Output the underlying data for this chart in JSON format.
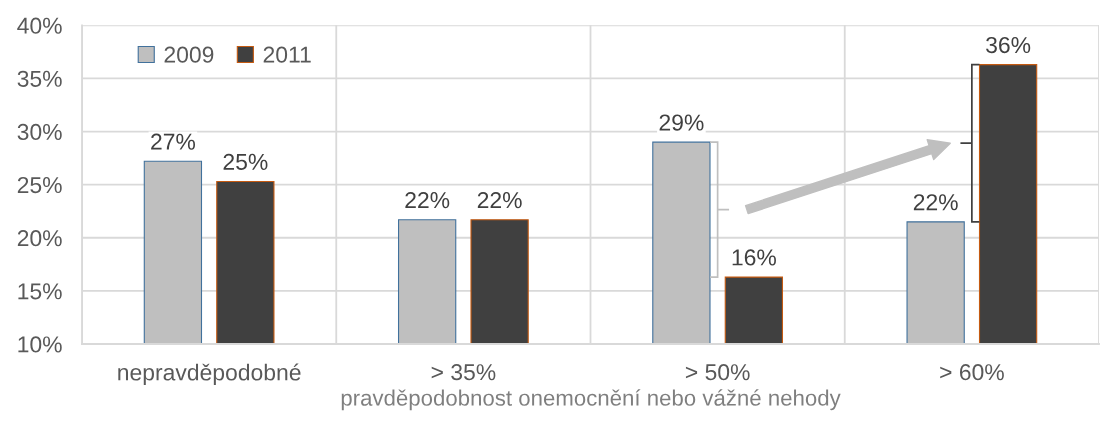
{
  "chart_data": {
    "type": "bar",
    "xlabel": "pravděpodobnost onemocnění nebo vážné nehody",
    "categories": [
      "nepravděpodobné",
      "> 35%",
      "> 50%",
      "> 60%"
    ],
    "series": [
      {
        "name": "2009",
        "color": "#bfbfbf",
        "values": [
          27.2,
          21.7,
          29.0,
          21.5
        ],
        "value_labels": [
          "27%",
          "22%",
          "29%",
          "22%"
        ]
      },
      {
        "name": "2011",
        "color": "#404040",
        "values": [
          25.3,
          21.7,
          16.3,
          36.3
        ],
        "value_labels": [
          "25%",
          "22%",
          "16%",
          "36%"
        ]
      }
    ],
    "ylim": [
      10,
      40
    ],
    "yticks": [
      {
        "value": 10,
        "label": "10%"
      },
      {
        "value": 15,
        "label": "15%"
      },
      {
        "value": 20,
        "label": "20%"
      },
      {
        "value": 25,
        "label": "25%"
      },
      {
        "value": 30,
        "label": "30%"
      },
      {
        "value": 35,
        "label": "35%"
      },
      {
        "value": 40,
        "label": "40%"
      }
    ],
    "grid": true,
    "legend": "top left"
  }
}
